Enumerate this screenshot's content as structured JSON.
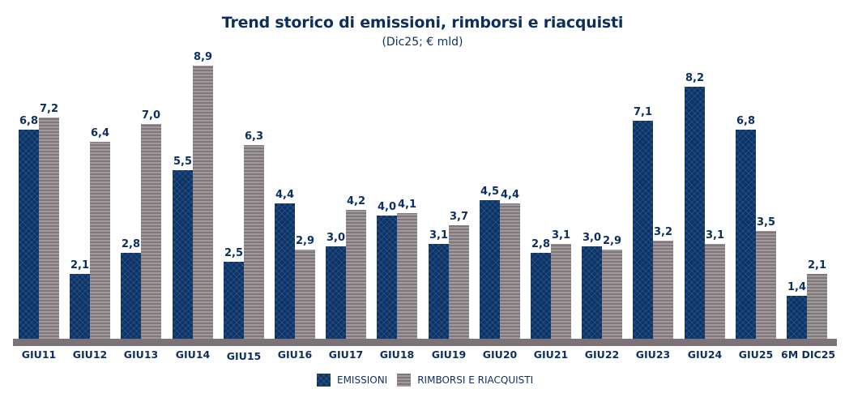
{
  "header": {
    "title": "Trend storico di emissioni, rimborsi e riacquisti",
    "subtitle": "(Dic25; € mld)"
  },
  "legend": {
    "items": [
      {
        "label": "EMISSIONI",
        "color": "#0c3469"
      },
      {
        "label": "RIMBORSI E RIACQUISTI",
        "color": "#8c8388"
      }
    ]
  },
  "chart_data": {
    "type": "bar",
    "title": "Trend storico di emissioni, rimborsi e riacquisti",
    "subtitle": "(Dic25; € mld)",
    "xlabel": "",
    "ylabel": "€ mld",
    "ylim": [
      0,
      9
    ],
    "grid": false,
    "legend_position": "bottom",
    "categories": [
      "GIU11",
      "GIU12",
      "GIU13",
      "GIU14",
      "GIU15",
      "GIU16",
      "GIU17",
      "GIU18",
      "GIU19",
      "GIU20",
      "GIU21",
      "GIU22",
      "GIU23",
      "GIU24",
      "GIU25",
      "6M DIC25"
    ],
    "series": [
      {
        "name": "EMISSIONI",
        "color": "#0c3469",
        "values": [
          6.8,
          2.1,
          2.8,
          5.5,
          2.5,
          4.4,
          3.0,
          4.0,
          3.1,
          4.5,
          2.8,
          3.0,
          7.1,
          8.2,
          6.8,
          1.4
        ],
        "labels": [
          "6,8",
          "2,1",
          "2,8",
          "5,5",
          "2,5",
          "4,4",
          "3,0",
          "4,0",
          "3,1",
          "4,5",
          "2,8",
          "3,0",
          "7,1",
          "8,2",
          "6,8",
          "1,4"
        ]
      },
      {
        "name": "RIMBORSI E RIACQUISTI",
        "color": "#8c8388",
        "values": [
          7.2,
          6.4,
          7.0,
          8.9,
          6.3,
          2.9,
          4.2,
          4.1,
          3.7,
          4.4,
          3.1,
          2.9,
          3.2,
          3.1,
          3.5,
          2.1
        ],
        "labels": [
          "7,2",
          "6,4",
          "7,0",
          "8,9",
          "6,3",
          "2,9",
          "4,2",
          "4,1",
          "3,7",
          "4,4",
          "3,1",
          "2,9",
          "3,2",
          "3,1",
          "3,5",
          "2,1"
        ]
      }
    ]
  }
}
